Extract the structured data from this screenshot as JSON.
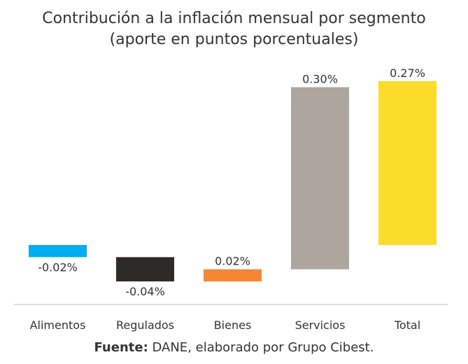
{
  "chart_data": {
    "type": "bar",
    "subtype": "waterfall",
    "title": "Contribución a la inflación mensual por segmento",
    "subtitle": "(aporte en puntos porcentuales)",
    "categories": [
      "Alimentos",
      "Regulados",
      "Bienes",
      "Servicios",
      "Total"
    ],
    "values": [
      -0.02,
      -0.04,
      0.02,
      0.3,
      0.27
    ],
    "labels": [
      "-0.02%",
      "-0.04%",
      "0.02%",
      "0.30%",
      "0.27%"
    ],
    "is_total": [
      false,
      false,
      false,
      false,
      true
    ],
    "colors": [
      "#00AEEF",
      "#2D2B2A",
      "#F58634",
      "#ADA59E",
      "#FCDC2A"
    ],
    "grid": false,
    "legend": "none"
  },
  "source": {
    "label": "Fuente:",
    "text": " DANE, elaborado por Grupo Cibest."
  }
}
